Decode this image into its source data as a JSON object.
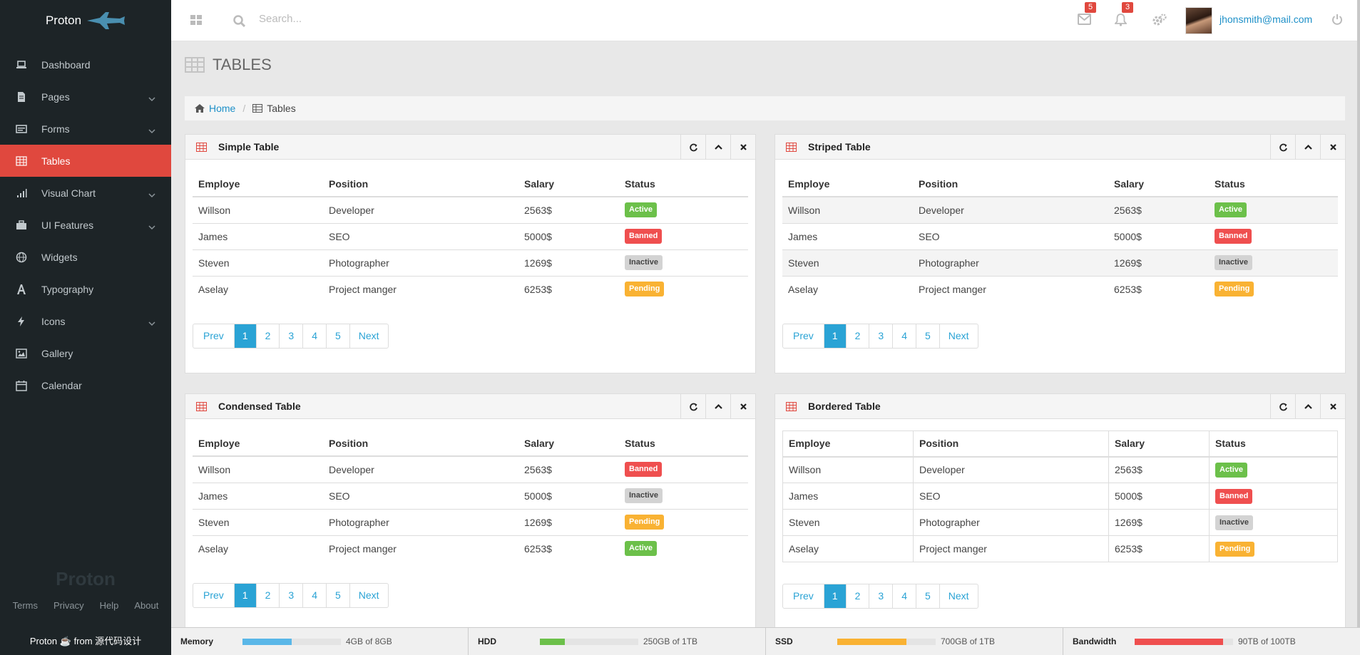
{
  "brand": {
    "name": "Proton"
  },
  "sidebar": {
    "items": [
      {
        "label": "Dashboard",
        "icon": "laptop-icon",
        "submenu": false,
        "active": false
      },
      {
        "label": "Pages",
        "icon": "file-icon",
        "submenu": true,
        "active": false
      },
      {
        "label": "Forms",
        "icon": "form-icon",
        "submenu": true,
        "active": false
      },
      {
        "label": "Tables",
        "icon": "table-icon",
        "submenu": false,
        "active": true
      },
      {
        "label": "Visual Chart",
        "icon": "bar-chart-icon",
        "submenu": true,
        "active": false
      },
      {
        "label": "UI Features",
        "icon": "briefcase-icon",
        "submenu": true,
        "active": false
      },
      {
        "label": "Widgets",
        "icon": "globe-icon",
        "submenu": false,
        "active": false
      },
      {
        "label": "Typography",
        "icon": "font-icon",
        "submenu": false,
        "active": false
      },
      {
        "label": "Icons",
        "icon": "bolt-icon",
        "submenu": true,
        "active": false
      },
      {
        "label": "Gallery",
        "icon": "picture-icon",
        "submenu": false,
        "active": false
      },
      {
        "label": "Calendar",
        "icon": "calendar-icon",
        "submenu": false,
        "active": false
      }
    ],
    "footer_logo": "Proton",
    "footer_links": [
      "Terms",
      "Privacy",
      "Help",
      "About"
    ],
    "footer_brand": "Proton",
    "footer_from": "from 源代码设计"
  },
  "header": {
    "search_placeholder": "Search...",
    "messages_count": "5",
    "notifications_count": "3",
    "user_email": "jhonsmith@mail.com"
  },
  "page": {
    "title": "TABLES",
    "breadcrumb_home": "Home",
    "breadcrumb_current": "Tables"
  },
  "table_columns": [
    "Employe",
    "Position",
    "Salary",
    "Status"
  ],
  "pagination": [
    "Prev",
    "1",
    "2",
    "3",
    "4",
    "5",
    "Next"
  ],
  "panels": {
    "simple": {
      "title": "Simple Table",
      "rows": [
        {
          "employe": "Willson",
          "position": "Developer",
          "salary": "2563$",
          "status": "Active",
          "status_type": "active"
        },
        {
          "employe": "James",
          "position": "SEO",
          "salary": "5000$",
          "status": "Banned",
          "status_type": "banned"
        },
        {
          "employe": "Steven",
          "position": "Photographer",
          "salary": "1269$",
          "status": "Inactive",
          "status_type": "inactive"
        },
        {
          "employe": "Aselay",
          "position": "Project manger",
          "salary": "6253$",
          "status": "Pending",
          "status_type": "pending"
        }
      ]
    },
    "striped": {
      "title": "Striped Table",
      "rows": [
        {
          "employe": "Willson",
          "position": "Developer",
          "salary": "2563$",
          "status": "Active",
          "status_type": "active"
        },
        {
          "employe": "James",
          "position": "SEO",
          "salary": "5000$",
          "status": "Banned",
          "status_type": "banned"
        },
        {
          "employe": "Steven",
          "position": "Photographer",
          "salary": "1269$",
          "status": "Inactive",
          "status_type": "inactive"
        },
        {
          "employe": "Aselay",
          "position": "Project manger",
          "salary": "6253$",
          "status": "Pending",
          "status_type": "pending"
        }
      ]
    },
    "condensed": {
      "title": "Condensed Table",
      "rows": [
        {
          "employe": "Willson",
          "position": "Developer",
          "salary": "2563$",
          "status": "Banned",
          "status_type": "banned"
        },
        {
          "employe": "James",
          "position": "SEO",
          "salary": "5000$",
          "status": "Inactive",
          "status_type": "inactive"
        },
        {
          "employe": "Steven",
          "position": "Photographer",
          "salary": "1269$",
          "status": "Pending",
          "status_type": "pending"
        },
        {
          "employe": "Aselay",
          "position": "Project manger",
          "salary": "6253$",
          "status": "Active",
          "status_type": "active"
        }
      ]
    },
    "bordered": {
      "title": "Bordered Table",
      "rows": [
        {
          "employe": "Willson",
          "position": "Developer",
          "salary": "2563$",
          "status": "Active",
          "status_type": "active"
        },
        {
          "employe": "James",
          "position": "SEO",
          "salary": "5000$",
          "status": "Banned",
          "status_type": "banned"
        },
        {
          "employe": "Steven",
          "position": "Photographer",
          "salary": "1269$",
          "status": "Inactive",
          "status_type": "inactive"
        },
        {
          "employe": "Aselay",
          "position": "Project manger",
          "salary": "6253$",
          "status": "Pending",
          "status_type": "pending"
        }
      ]
    }
  },
  "statusbar": [
    {
      "name": "Memory",
      "value": "4GB of 8GB",
      "fraction": 0.5,
      "color": "#5ab7e8"
    },
    {
      "name": "HDD",
      "value": "250GB of 1TB",
      "fraction": 0.25,
      "color": "#6cc04a"
    },
    {
      "name": "SSD",
      "value": "700GB of 1TB",
      "fraction": 0.7,
      "color": "#f9b233"
    },
    {
      "name": "Bandwidth",
      "value": "90TB of 100TB",
      "fraction": 0.9,
      "color": "#ef4f4f"
    }
  ],
  "colors": {
    "sidebar_bg": "#1d2427",
    "accent_red": "#e0483e",
    "link_blue": "#1e90c8",
    "page_active": "#2aa3d5"
  }
}
